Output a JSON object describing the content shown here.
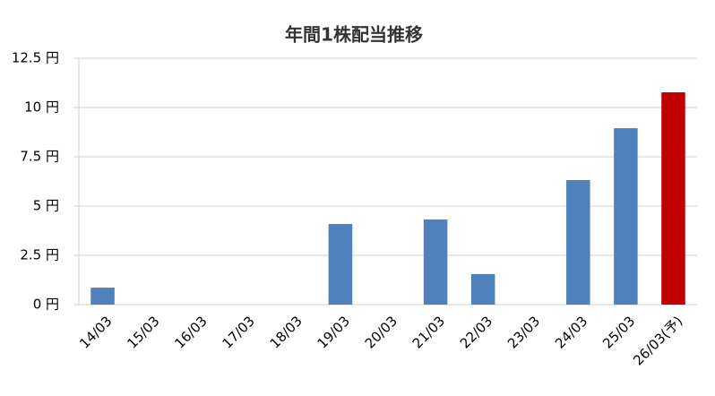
{
  "chart_data": {
    "type": "bar",
    "title": "年間1株配当推移",
    "categories": [
      "14/03",
      "15/03",
      "16/03",
      "17/03",
      "18/03",
      "19/03",
      "20/03",
      "21/03",
      "22/03",
      "23/03",
      "24/03",
      "25/03",
      "26/03(予)"
    ],
    "values": [
      0.86,
      0,
      0,
      0,
      0,
      4.09,
      0,
      4.32,
      1.55,
      0,
      6.32,
      8.95,
      10.77
    ],
    "colors": [
      "#4f81bd",
      "#4f81bd",
      "#4f81bd",
      "#4f81bd",
      "#4f81bd",
      "#4f81bd",
      "#4f81bd",
      "#4f81bd",
      "#4f81bd",
      "#4f81bd",
      "#4f81bd",
      "#4f81bd",
      "#c00000"
    ],
    "ylim": [
      0,
      12.5
    ],
    "yticks": [
      {
        "value": 0,
        "label": "0 円"
      },
      {
        "value": 2.5,
        "label": "2.5 円"
      },
      {
        "value": 5,
        "label": "5 円"
      },
      {
        "value": 7.5,
        "label": "7.5 円"
      },
      {
        "value": 10,
        "label": "10 円"
      },
      {
        "value": 12.5,
        "label": "12.5 円"
      }
    ],
    "grid": true
  }
}
